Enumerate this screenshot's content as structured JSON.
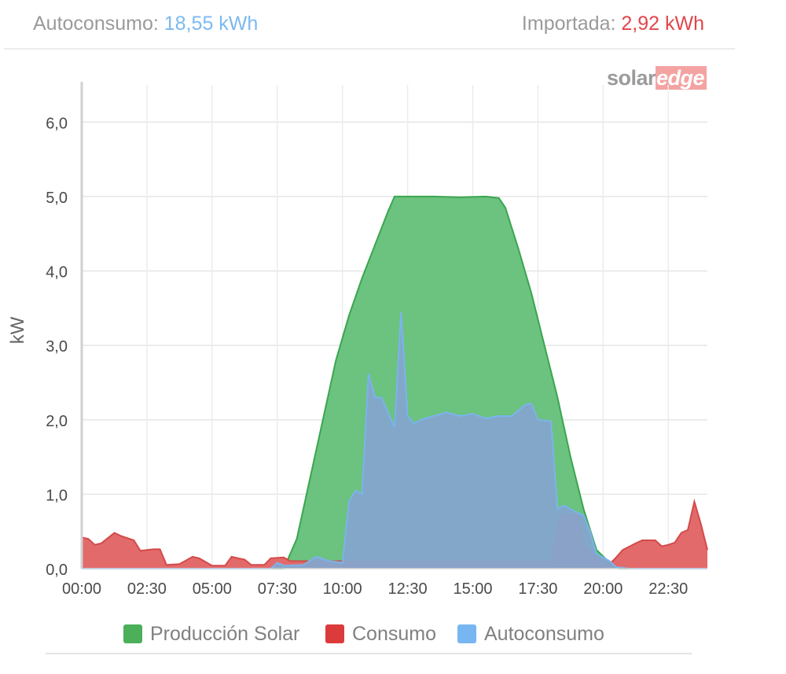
{
  "summary": {
    "autoconsumo_label": "Autoconsumo:",
    "autoconsumo_value": "18,55 kWh",
    "importada_label": "Importada:",
    "importada_value": "2,92 kWh",
    "autoconsumo_color": "#7cb9f0",
    "importada_color": "#e0464a"
  },
  "logo": {
    "part1": "solar",
    "part2": "edge"
  },
  "chart_data": {
    "type": "area",
    "title": "",
    "xlabel": "",
    "ylabel": "kW",
    "ylim": [
      0,
      6.5
    ],
    "xlim_hours": [
      0,
      24
    ],
    "x_tick_labels": [
      "00:00",
      "02:30",
      "05:00",
      "07:30",
      "10:00",
      "12:30",
      "15:00",
      "17:30",
      "20:00",
      "22:30"
    ],
    "y_ticks": [
      0,
      1,
      2,
      3,
      4,
      5,
      6
    ],
    "y_tick_labels": [
      "0,0",
      "1,0",
      "2,0",
      "3,0",
      "4,0",
      "5,0",
      "6,0"
    ],
    "grid": true,
    "legend_position": "bottom",
    "series": [
      {
        "name": "Producción Solar",
        "color": "#6cc27f",
        "stroke": "#3aa64f",
        "points": [
          [
            0,
            0
          ],
          [
            7.75,
            0
          ],
          [
            8.25,
            0.4
          ],
          [
            8.75,
            1.2
          ],
          [
            9.25,
            2.0
          ],
          [
            9.75,
            2.8
          ],
          [
            10.25,
            3.4
          ],
          [
            10.75,
            3.9
          ],
          [
            11.25,
            4.35
          ],
          [
            11.75,
            4.8
          ],
          [
            12.0,
            5.0
          ],
          [
            12.5,
            5.0
          ],
          [
            13.5,
            5.0
          ],
          [
            14.5,
            4.99
          ],
          [
            15.5,
            5.0
          ],
          [
            16.0,
            4.98
          ],
          [
            16.25,
            4.85
          ],
          [
            16.75,
            4.3
          ],
          [
            17.25,
            3.7
          ],
          [
            17.75,
            3.0
          ],
          [
            18.25,
            2.3
          ],
          [
            18.75,
            1.5
          ],
          [
            19.25,
            0.8
          ],
          [
            19.75,
            0.25
          ],
          [
            20.25,
            0.08
          ],
          [
            20.6,
            0
          ],
          [
            24,
            0
          ]
        ]
      },
      {
        "name": "Consumo",
        "color": "#e36a6a",
        "stroke": "#d44a4a",
        "points": [
          [
            0,
            0.42
          ],
          [
            0.25,
            0.4
          ],
          [
            0.5,
            0.32
          ],
          [
            0.75,
            0.34
          ],
          [
            1.25,
            0.48
          ],
          [
            1.5,
            0.44
          ],
          [
            2.0,
            0.38
          ],
          [
            2.25,
            0.24
          ],
          [
            2.75,
            0.26
          ],
          [
            3.0,
            0.26
          ],
          [
            3.25,
            0.05
          ],
          [
            3.75,
            0.06
          ],
          [
            4.25,
            0.16
          ],
          [
            4.5,
            0.14
          ],
          [
            5.0,
            0.04
          ],
          [
            5.5,
            0.04
          ],
          [
            5.75,
            0.16
          ],
          [
            6.0,
            0.14
          ],
          [
            6.25,
            0.12
          ],
          [
            6.5,
            0.05
          ],
          [
            7.0,
            0.05
          ],
          [
            7.25,
            0.14
          ],
          [
            7.75,
            0.15
          ],
          [
            8.0,
            0.1
          ],
          [
            9.0,
            0.1
          ],
          [
            10.0,
            0.1
          ],
          [
            11.0,
            0.1
          ],
          [
            12.0,
            0.1
          ],
          [
            13.0,
            0.1
          ],
          [
            14.0,
            0.1
          ],
          [
            15.0,
            0.1
          ],
          [
            16.0,
            0.1
          ],
          [
            17.0,
            0.1
          ],
          [
            18.0,
            0.1
          ],
          [
            18.4,
            0.72
          ],
          [
            19.0,
            0.72
          ],
          [
            19.25,
            0.3
          ],
          [
            19.75,
            0.15
          ],
          [
            20.25,
            0.06
          ],
          [
            20.5,
            0.15
          ],
          [
            20.75,
            0.25
          ],
          [
            21.25,
            0.34
          ],
          [
            21.5,
            0.38
          ],
          [
            22.0,
            0.38
          ],
          [
            22.25,
            0.3
          ],
          [
            22.5,
            0.32
          ],
          [
            22.75,
            0.35
          ],
          [
            23.0,
            0.48
          ],
          [
            23.25,
            0.52
          ],
          [
            23.5,
            0.9
          ],
          [
            23.75,
            0.6
          ],
          [
            24,
            0.25
          ]
        ]
      },
      {
        "name": "Autoconsumo",
        "color": "#85a5cc",
        "stroke": "#7ab4ec",
        "points": [
          [
            0,
            0
          ],
          [
            7.25,
            0
          ],
          [
            7.5,
            0.08
          ],
          [
            7.75,
            0.04
          ],
          [
            8.5,
            0.05
          ],
          [
            9.0,
            0.16
          ],
          [
            9.5,
            0.1
          ],
          [
            10.0,
            0.08
          ],
          [
            10.25,
            0.9
          ],
          [
            10.5,
            1.05
          ],
          [
            10.75,
            1.0
          ],
          [
            11.0,
            2.62
          ],
          [
            11.25,
            2.3
          ],
          [
            11.5,
            2.3
          ],
          [
            11.75,
            2.1
          ],
          [
            12.0,
            1.9
          ],
          [
            12.25,
            3.45
          ],
          [
            12.5,
            2.05
          ],
          [
            12.75,
            1.95
          ],
          [
            13.0,
            2.0
          ],
          [
            13.5,
            2.05
          ],
          [
            14.0,
            2.1
          ],
          [
            14.5,
            2.05
          ],
          [
            15.0,
            2.08
          ],
          [
            15.5,
            2.02
          ],
          [
            16.0,
            2.05
          ],
          [
            16.5,
            2.05
          ],
          [
            17.0,
            2.2
          ],
          [
            17.25,
            2.22
          ],
          [
            17.5,
            2.0
          ],
          [
            18.0,
            1.98
          ],
          [
            18.25,
            0.8
          ],
          [
            18.5,
            0.85
          ],
          [
            19.0,
            0.75
          ],
          [
            19.25,
            0.72
          ],
          [
            19.5,
            0.5
          ],
          [
            19.75,
            0.2
          ],
          [
            20.25,
            0.1
          ],
          [
            20.5,
            0.02
          ],
          [
            21.0,
            0
          ],
          [
            24,
            0
          ]
        ]
      }
    ]
  }
}
